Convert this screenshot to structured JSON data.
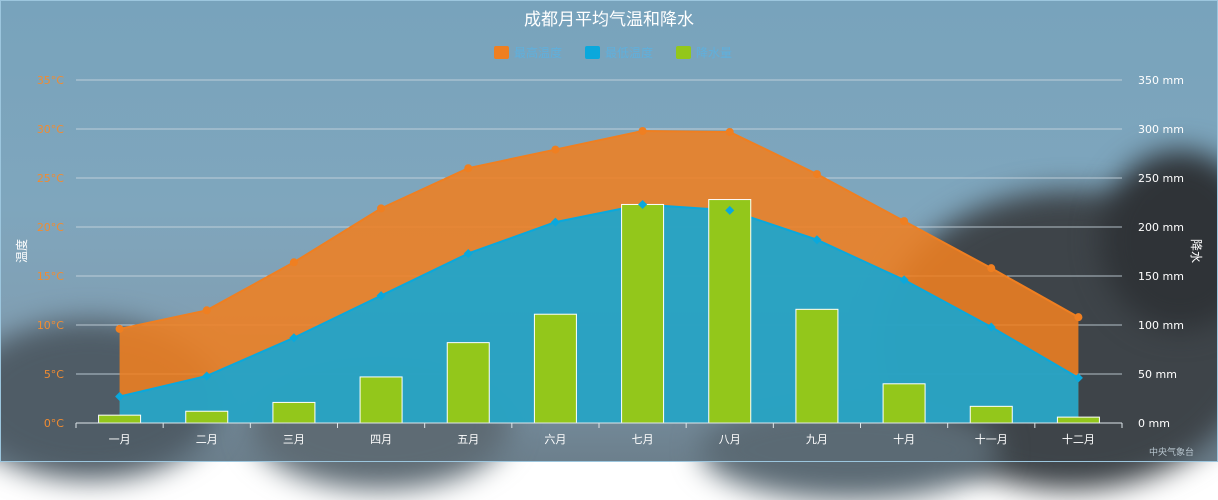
{
  "chart_data": {
    "type": "area+bar",
    "title": "成都月平均气温和降水",
    "legend": [
      "最高温度",
      "最低温度",
      "降水量"
    ],
    "legend_position": "top-center",
    "categories": [
      "一月",
      "二月",
      "三月",
      "四月",
      "五月",
      "六月",
      "七月",
      "八月",
      "九月",
      "十月",
      "十一月",
      "十二月"
    ],
    "series": [
      {
        "name": "最高温度",
        "type": "area",
        "axis": "left",
        "color": "#ef7f21",
        "values": [
          9.6,
          11.5,
          16.4,
          21.9,
          26.0,
          27.9,
          29.8,
          29.7,
          25.4,
          20.6,
          15.8,
          10.8
        ]
      },
      {
        "name": "最低温度",
        "type": "area",
        "axis": "left",
        "color": "#0aa8dc",
        "values": [
          2.7,
          4.8,
          8.7,
          13.0,
          17.3,
          20.5,
          22.3,
          21.7,
          18.7,
          14.6,
          9.8,
          4.6
        ]
      },
      {
        "name": "降水量",
        "type": "bar",
        "axis": "right",
        "color": "#93c71b",
        "values": [
          8,
          12,
          21,
          47,
          82,
          111,
          223,
          228,
          116,
          40,
          17,
          6
        ]
      }
    ],
    "y_left": {
      "label": "温度",
      "min": 0,
      "max": 35,
      "ticks": [
        "0°C",
        "5°C",
        "10°C",
        "15°C",
        "20°C",
        "25°C",
        "30°C",
        "35°C"
      ]
    },
    "y_right": {
      "label": "降水",
      "min": 0,
      "max": 350,
      "ticks": [
        "0 mm",
        "50 mm",
        "100 mm",
        "150 mm",
        "200 mm",
        "250 mm",
        "300 mm",
        "350 mm"
      ]
    },
    "grid": true
  },
  "watermark": "中央气象台",
  "colors": {
    "left_axis_text": "#f08c32",
    "right_axis_text": "#ffffff",
    "legend_text": "#5fb0dd",
    "grid": "#c9d6df"
  }
}
